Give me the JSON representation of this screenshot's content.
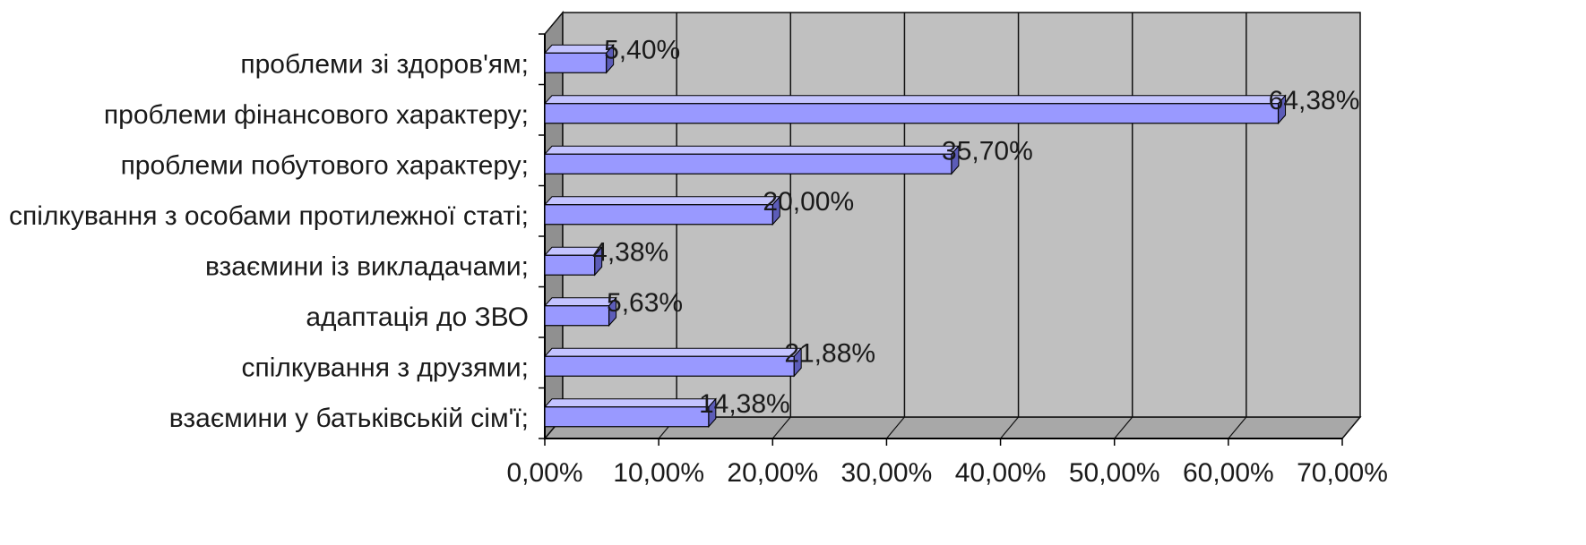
{
  "chart_data": {
    "type": "bar",
    "orientation": "horizontal",
    "style": "3d",
    "categories": [
      "проблеми зі здоров'ям;",
      "проблеми фінансового характеру;",
      "проблеми побутового характеру;",
      "спілкування з особами протилежної статі;",
      "взаємини із викладачами;",
      "адаптація до ЗВО",
      "спілкування з друзями;",
      "взаємини у батьківській сім'ї;"
    ],
    "values": [
      5.4,
      64.38,
      35.7,
      20.0,
      4.38,
      5.63,
      21.88,
      14.38
    ],
    "data_labels": [
      "5,40%",
      "64,38%",
      "35,70%",
      "20,00%",
      "4,38%",
      "5,63%",
      "21,88%",
      "14,38%"
    ],
    "x_ticks": [
      "0,00%",
      "10,00%",
      "20,00%",
      "30,00%",
      "40,00%",
      "50,00%",
      "60,00%",
      "70,00%"
    ],
    "xlim": [
      0,
      70
    ],
    "title": "",
    "xlabel": "",
    "ylabel": "",
    "grid": true,
    "legend": "none",
    "colors": {
      "bar_front": "#9999ff",
      "bar_top": "#c4c4ff",
      "bar_side": "#5c5cb8",
      "wall": "#c0c0c0",
      "floor": "#a8a8a8",
      "grid": "#111111"
    }
  }
}
